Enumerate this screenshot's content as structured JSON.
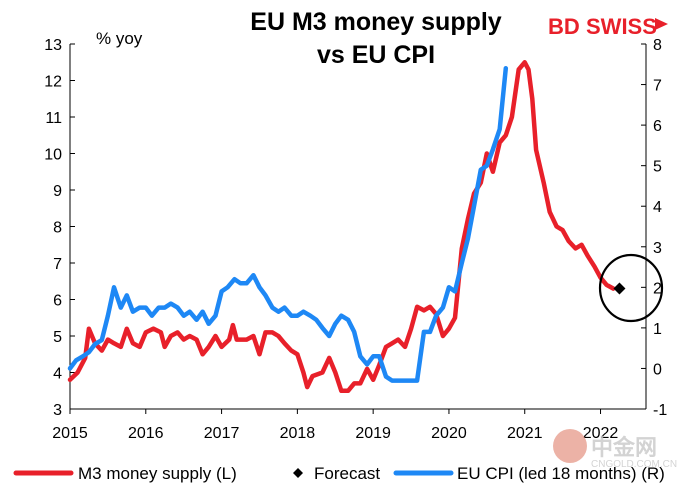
{
  "chart_data": {
    "type": "line",
    "title_line1": "EU M3 money supply",
    "title_line2": "vs EU CPI",
    "left_unit": "% yoy",
    "x_ticks": [
      "2015",
      "2016",
      "2017",
      "2018",
      "2019",
      "2020",
      "2021",
      "2022"
    ],
    "y_left": {
      "min": 3,
      "max": 13,
      "ticks": [
        "3",
        "4",
        "5",
        "6",
        "7",
        "8",
        "9",
        "10",
        "11",
        "12",
        "13"
      ]
    },
    "y_right": {
      "min": -1,
      "max": 8,
      "ticks": [
        "-1",
        "0",
        "1",
        "2",
        "3",
        "4",
        "5",
        "6",
        "7",
        "8"
      ]
    },
    "grid": false,
    "legend_position": "bottom",
    "series": [
      {
        "name": "M3 money supply (L)",
        "axis": "left",
        "color": "#e8202a",
        "points": [
          [
            2015.0,
            3.8
          ],
          [
            2015.1,
            4.0
          ],
          [
            2015.2,
            4.4
          ],
          [
            2015.25,
            5.2
          ],
          [
            2015.33,
            4.8
          ],
          [
            2015.42,
            4.6
          ],
          [
            2015.5,
            4.9
          ],
          [
            2015.58,
            4.8
          ],
          [
            2015.67,
            4.7
          ],
          [
            2015.75,
            5.2
          ],
          [
            2015.83,
            4.8
          ],
          [
            2015.92,
            4.7
          ],
          [
            2016.0,
            5.1
          ],
          [
            2016.1,
            5.2
          ],
          [
            2016.2,
            5.1
          ],
          [
            2016.25,
            4.7
          ],
          [
            2016.33,
            5.0
          ],
          [
            2016.42,
            5.1
          ],
          [
            2016.5,
            4.9
          ],
          [
            2016.58,
            5.0
          ],
          [
            2016.67,
            4.9
          ],
          [
            2016.75,
            4.5
          ],
          [
            2016.83,
            4.7
          ],
          [
            2016.92,
            5.0
          ],
          [
            2017.0,
            4.7
          ],
          [
            2017.1,
            4.9
          ],
          [
            2017.15,
            5.3
          ],
          [
            2017.2,
            4.9
          ],
          [
            2017.33,
            4.9
          ],
          [
            2017.42,
            5.0
          ],
          [
            2017.5,
            4.5
          ],
          [
            2017.58,
            5.1
          ],
          [
            2017.67,
            5.1
          ],
          [
            2017.75,
            5.0
          ],
          [
            2017.83,
            4.8
          ],
          [
            2017.92,
            4.6
          ],
          [
            2018.0,
            4.5
          ],
          [
            2018.08,
            4.0
          ],
          [
            2018.13,
            3.6
          ],
          [
            2018.2,
            3.9
          ],
          [
            2018.33,
            4.0
          ],
          [
            2018.42,
            4.4
          ],
          [
            2018.5,
            4.0
          ],
          [
            2018.58,
            3.5
          ],
          [
            2018.67,
            3.5
          ],
          [
            2018.75,
            3.7
          ],
          [
            2018.83,
            3.7
          ],
          [
            2018.92,
            4.1
          ],
          [
            2019.0,
            3.8
          ],
          [
            2019.08,
            4.2
          ],
          [
            2019.17,
            4.7
          ],
          [
            2019.25,
            4.8
          ],
          [
            2019.33,
            4.9
          ],
          [
            2019.42,
            4.7
          ],
          [
            2019.5,
            5.2
          ],
          [
            2019.58,
            5.8
          ],
          [
            2019.67,
            5.7
          ],
          [
            2019.75,
            5.8
          ],
          [
            2019.83,
            5.6
          ],
          [
            2019.92,
            5.0
          ],
          [
            2020.0,
            5.2
          ],
          [
            2020.08,
            5.5
          ],
          [
            2020.17,
            7.4
          ],
          [
            2020.25,
            8.2
          ],
          [
            2020.33,
            8.9
          ],
          [
            2020.42,
            9.2
          ],
          [
            2020.5,
            10.0
          ],
          [
            2020.58,
            9.5
          ],
          [
            2020.67,
            10.3
          ],
          [
            2020.75,
            10.5
          ],
          [
            2020.83,
            11.0
          ],
          [
            2020.92,
            12.3
          ],
          [
            2021.0,
            12.5
          ],
          [
            2021.05,
            12.3
          ],
          [
            2021.1,
            11.5
          ],
          [
            2021.15,
            10.1
          ],
          [
            2021.25,
            9.2
          ],
          [
            2021.33,
            8.4
          ],
          [
            2021.42,
            8.0
          ],
          [
            2021.5,
            7.9
          ],
          [
            2021.58,
            7.6
          ],
          [
            2021.67,
            7.4
          ],
          [
            2021.75,
            7.5
          ],
          [
            2021.83,
            7.2
          ],
          [
            2021.92,
            6.9
          ],
          [
            2022.0,
            6.6
          ],
          [
            2022.08,
            6.4
          ],
          [
            2022.17,
            6.3
          ]
        ]
      },
      {
        "name": "Forecast",
        "axis": "left",
        "color": "#000000",
        "points": [
          [
            2022.25,
            6.3
          ]
        ]
      },
      {
        "name": "EU CPI (led 18 months) (R)",
        "axis": "right",
        "color": "#1e88f5",
        "points": [
          [
            2015.0,
            0.0
          ],
          [
            2015.08,
            0.2
          ],
          [
            2015.17,
            0.3
          ],
          [
            2015.25,
            0.4
          ],
          [
            2015.33,
            0.6
          ],
          [
            2015.42,
            0.7
          ],
          [
            2015.5,
            1.3
          ],
          [
            2015.58,
            2.0
          ],
          [
            2015.67,
            1.5
          ],
          [
            2015.75,
            1.8
          ],
          [
            2015.83,
            1.4
          ],
          [
            2015.92,
            1.5
          ],
          [
            2016.0,
            1.5
          ],
          [
            2016.08,
            1.3
          ],
          [
            2016.17,
            1.5
          ],
          [
            2016.25,
            1.5
          ],
          [
            2016.33,
            1.6
          ],
          [
            2016.42,
            1.5
          ],
          [
            2016.5,
            1.3
          ],
          [
            2016.58,
            1.4
          ],
          [
            2016.67,
            1.2
          ],
          [
            2016.75,
            1.4
          ],
          [
            2016.83,
            1.1
          ],
          [
            2016.92,
            1.3
          ],
          [
            2017.0,
            1.9
          ],
          [
            2017.08,
            2.0
          ],
          [
            2017.17,
            2.2
          ],
          [
            2017.25,
            2.1
          ],
          [
            2017.33,
            2.1
          ],
          [
            2017.42,
            2.3
          ],
          [
            2017.5,
            2.0
          ],
          [
            2017.58,
            1.8
          ],
          [
            2017.67,
            1.5
          ],
          [
            2017.75,
            1.4
          ],
          [
            2017.83,
            1.5
          ],
          [
            2017.92,
            1.3
          ],
          [
            2018.0,
            1.3
          ],
          [
            2018.08,
            1.4
          ],
          [
            2018.17,
            1.3
          ],
          [
            2018.25,
            1.2
          ],
          [
            2018.33,
            1.0
          ],
          [
            2018.42,
            0.8
          ],
          [
            2018.5,
            1.1
          ],
          [
            2018.58,
            1.3
          ],
          [
            2018.67,
            1.2
          ],
          [
            2018.75,
            0.9
          ],
          [
            2018.83,
            0.3
          ],
          [
            2018.92,
            0.1
          ],
          [
            2019.0,
            0.3
          ],
          [
            2019.08,
            0.3
          ],
          [
            2019.17,
            -0.2
          ],
          [
            2019.25,
            -0.3
          ],
          [
            2019.33,
            -0.3
          ],
          [
            2019.42,
            -0.3
          ],
          [
            2019.5,
            -0.3
          ],
          [
            2019.58,
            -0.3
          ],
          [
            2019.67,
            0.9
          ],
          [
            2019.75,
            0.9
          ],
          [
            2019.83,
            1.3
          ],
          [
            2019.92,
            1.5
          ],
          [
            2020.0,
            2.0
          ],
          [
            2020.08,
            1.9
          ],
          [
            2020.17,
            2.6
          ],
          [
            2020.25,
            3.2
          ],
          [
            2020.33,
            4.0
          ],
          [
            2020.42,
            4.9
          ],
          [
            2020.5,
            5.0
          ],
          [
            2020.58,
            5.4
          ],
          [
            2020.67,
            5.9
          ],
          [
            2020.75,
            7.4
          ]
        ]
      }
    ]
  },
  "watermark": {
    "brand_bd": "BD",
    "brand_swiss": "SWISS",
    "site_text": "中金网",
    "site_url": "CNGOLD.COM.CN"
  }
}
